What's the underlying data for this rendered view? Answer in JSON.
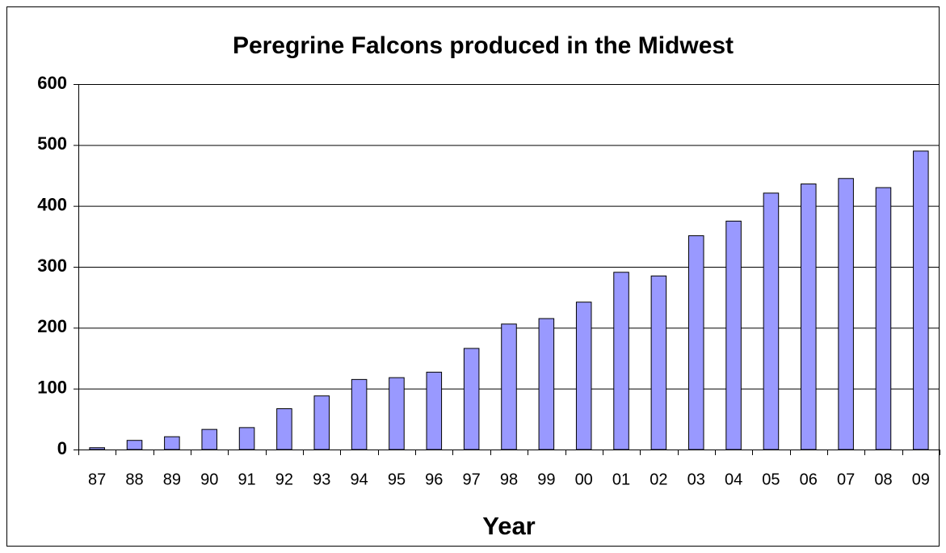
{
  "chart_data": {
    "type": "bar",
    "title": "Peregrine Falcons produced in the Midwest",
    "x_label": "Year",
    "categories": [
      "87",
      "88",
      "89",
      "90",
      "91",
      "92",
      "93",
      "94",
      "95",
      "96",
      "97",
      "98",
      "99",
      "00",
      "01",
      "02",
      "03",
      "04",
      "05",
      "06",
      "07",
      "08",
      "09"
    ],
    "values": [
      3,
      15,
      21,
      33,
      36,
      67,
      88,
      115,
      118,
      127,
      166,
      206,
      215,
      242,
      291,
      285,
      351,
      375,
      421,
      436,
      445,
      430,
      490
    ],
    "color": "#9999ff",
    "ylim": [
      0,
      600
    ],
    "yticks": [
      0,
      100,
      200,
      300,
      400,
      500,
      600
    ],
    "grid": true
  }
}
